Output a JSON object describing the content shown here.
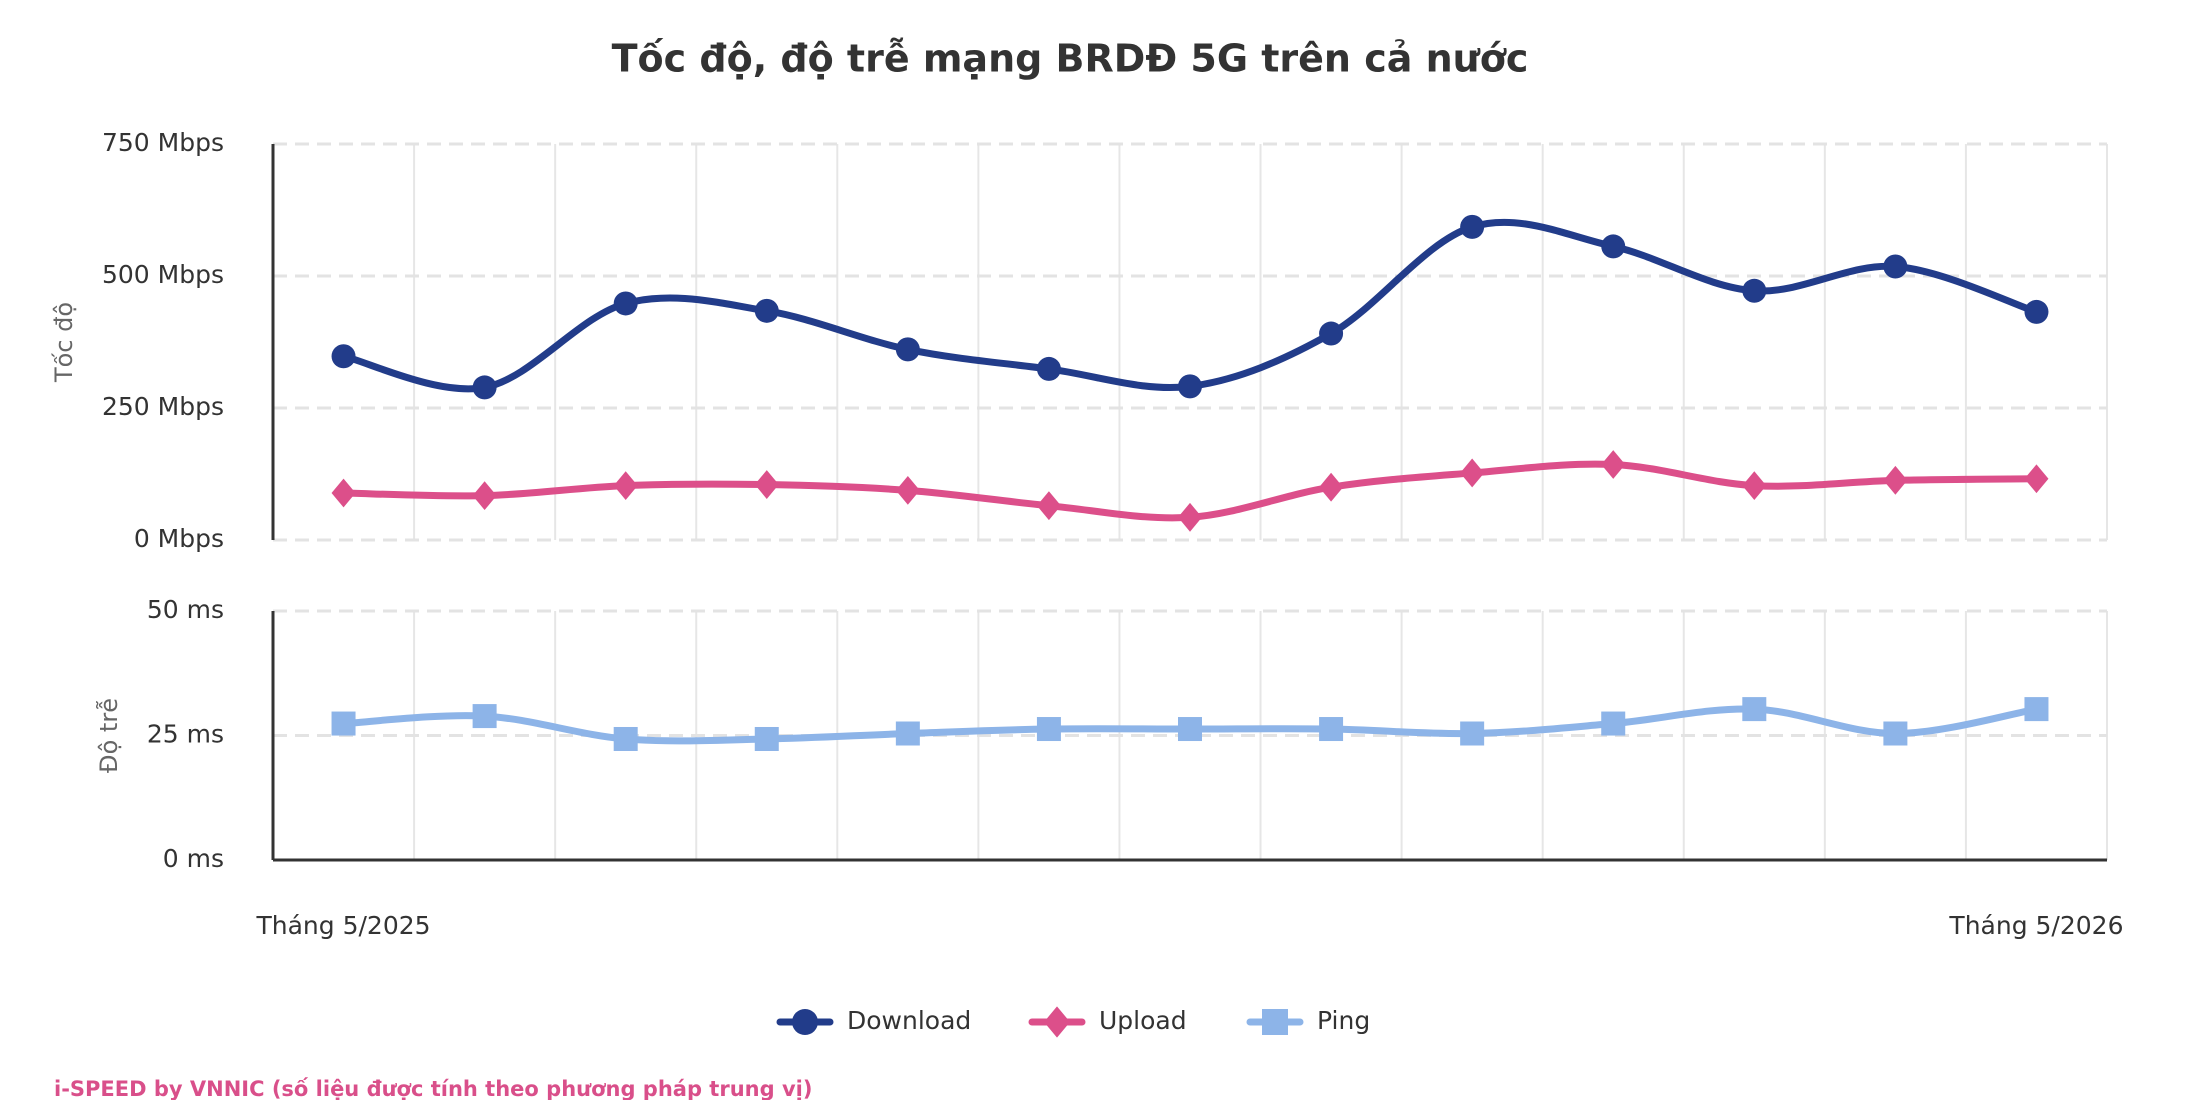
{
  "chart_data": {
    "type": "line",
    "title": "Tốc độ, độ trễ mạng BRDĐ 5G trên cả nước",
    "categories": [
      "Tháng 5/2025",
      null,
      null,
      null,
      null,
      null,
      null,
      null,
      null,
      null,
      null,
      null,
      "Tháng 5/2026"
    ],
    "ylabel": "Tốc độ",
    "y2label": "Độ trễ",
    "ylim": [
      0,
      750
    ],
    "yticks": [
      {
        "value": 0,
        "label": "0 Mbps"
      },
      {
        "value": 250,
        "label": "250 Mbps"
      },
      {
        "value": 500,
        "label": "500 Mbps"
      },
      {
        "value": 750,
        "label": "750 Mbps"
      }
    ],
    "y2lim": [
      0,
      50
    ],
    "y2ticks": [
      {
        "value": 0,
        "label": "0 ms"
      },
      {
        "value": 25,
        "label": "25 ms"
      },
      {
        "value": 50,
        "label": "50 ms"
      }
    ],
    "grid": true,
    "series": [
      {
        "name": "Download",
        "color": "#223c8a",
        "marker": "circle",
        "axis": "y",
        "values": [
          348,
          289,
          448,
          434,
          361,
          324,
          291,
          391,
          593,
          556,
          472,
          518,
          432
        ]
      },
      {
        "name": "Upload",
        "color": "#dc4f8a",
        "marker": "diamond",
        "axis": "y",
        "values": [
          89,
          84,
          103,
          105,
          94,
          65,
          43,
          100,
          127,
          143,
          103,
          113,
          116
        ]
      },
      {
        "name": "Ping",
        "color": "#8db4e8",
        "marker": "square",
        "axis": "y2",
        "values": [
          27.4,
          28.9,
          24.3,
          24.3,
          25.4,
          26.3,
          26.3,
          26.3,
          25.4,
          27.4,
          30.3,
          25.4,
          30.3
        ]
      }
    ],
    "legend": "bottom",
    "source": "i-SPEED by VNNIC (số liệu được tính theo phương pháp trung vị)"
  }
}
